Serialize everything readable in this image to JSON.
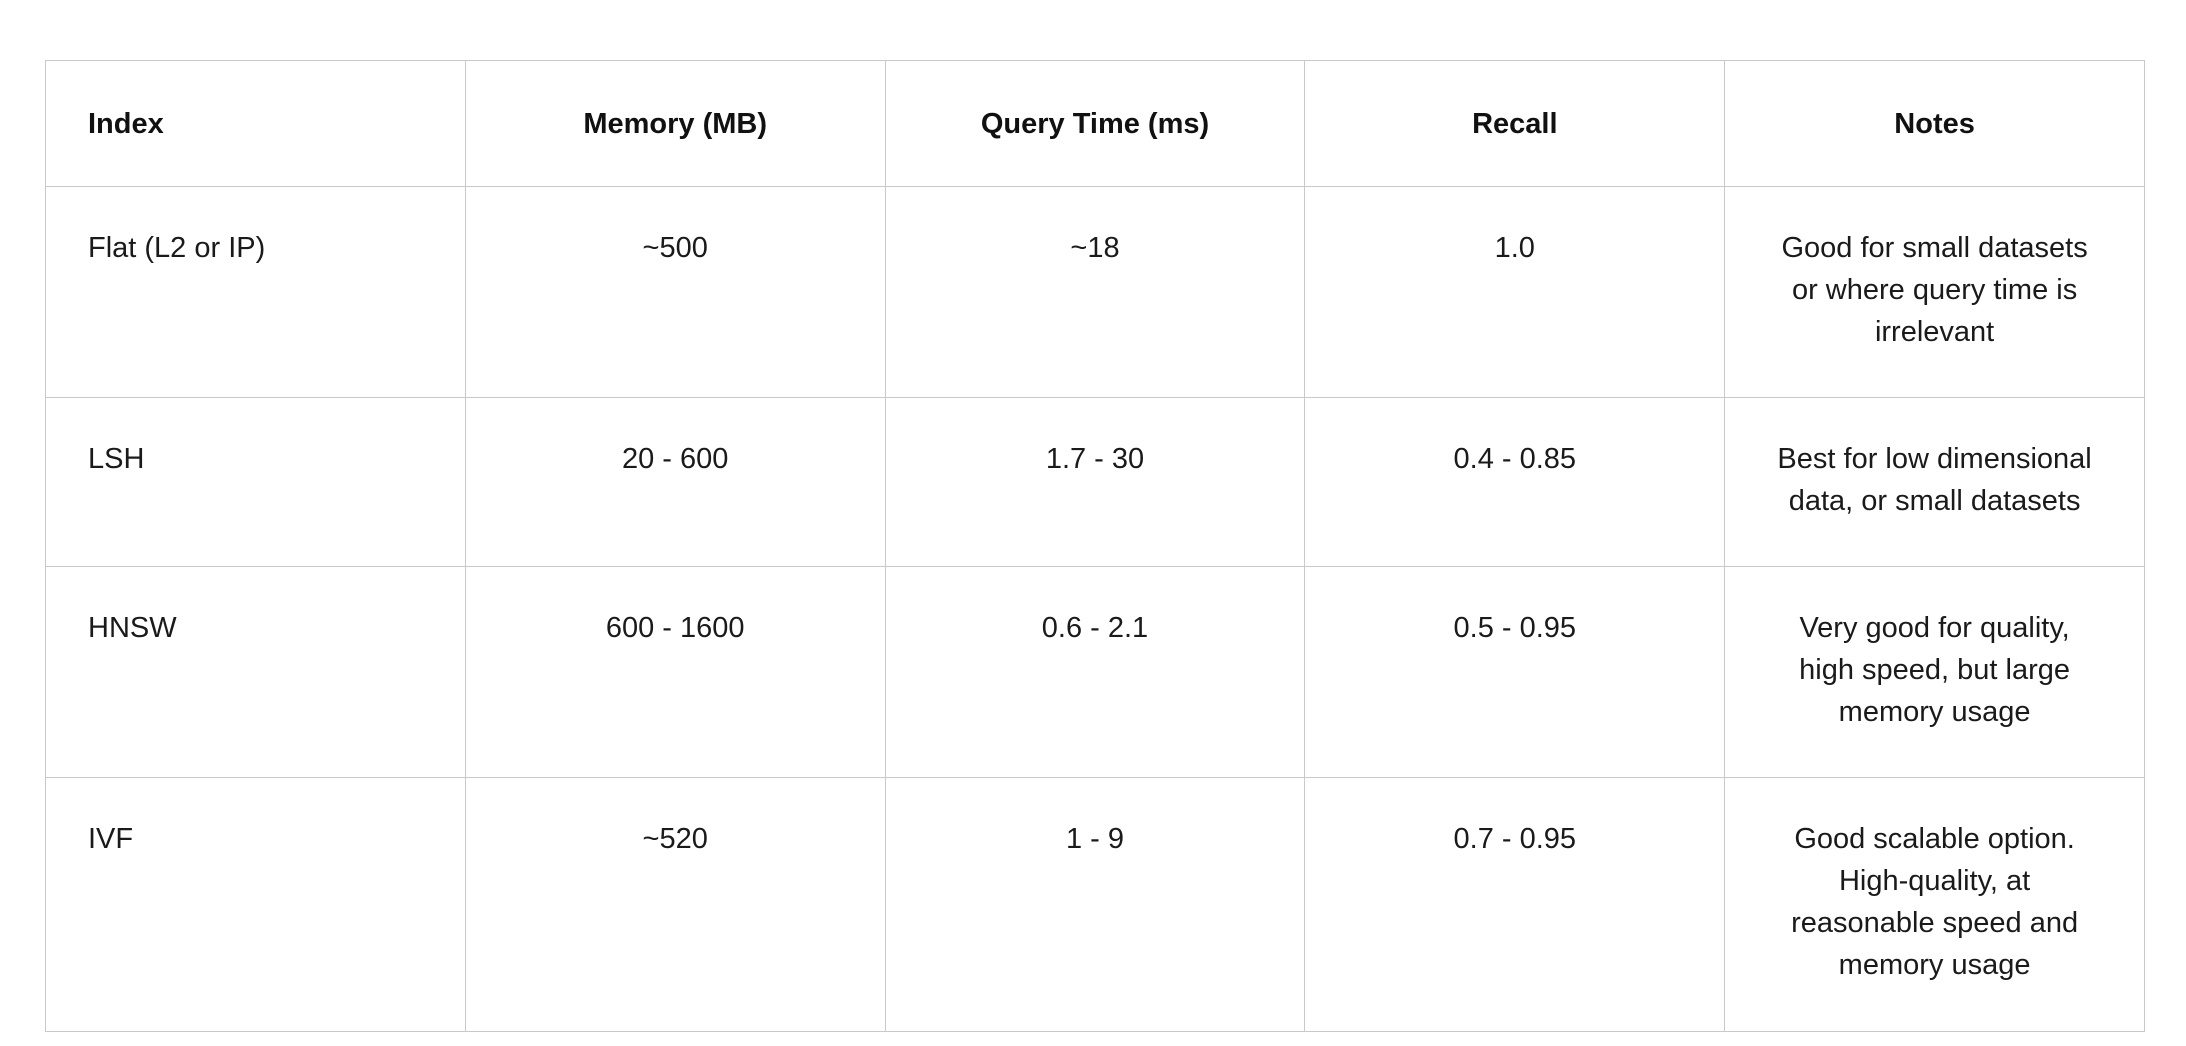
{
  "table": {
    "headers": [
      "Index",
      "Memory (MB)",
      "Query Time (ms)",
      "Recall",
      "Notes"
    ],
    "rows": [
      [
        "Flat (L2 or IP)",
        "~500",
        "~18",
        "1.0",
        "Good for small datasets or where query time is irrelevant"
      ],
      [
        "LSH",
        "20 - 600",
        "1.7 - 30",
        "0.4 - 0.85",
        "Best for low dimensional data, or small datasets"
      ],
      [
        "HNSW",
        "600 - 1600",
        "0.6 - 2.1",
        "0.5 - 0.95",
        "Very good for quality, high speed, but large memory usage"
      ],
      [
        "IVF",
        "~520",
        "1 - 9",
        "0.7 - 0.95",
        "Good scalable option. High-quality, at reasonable speed and memory usage"
      ]
    ]
  }
}
